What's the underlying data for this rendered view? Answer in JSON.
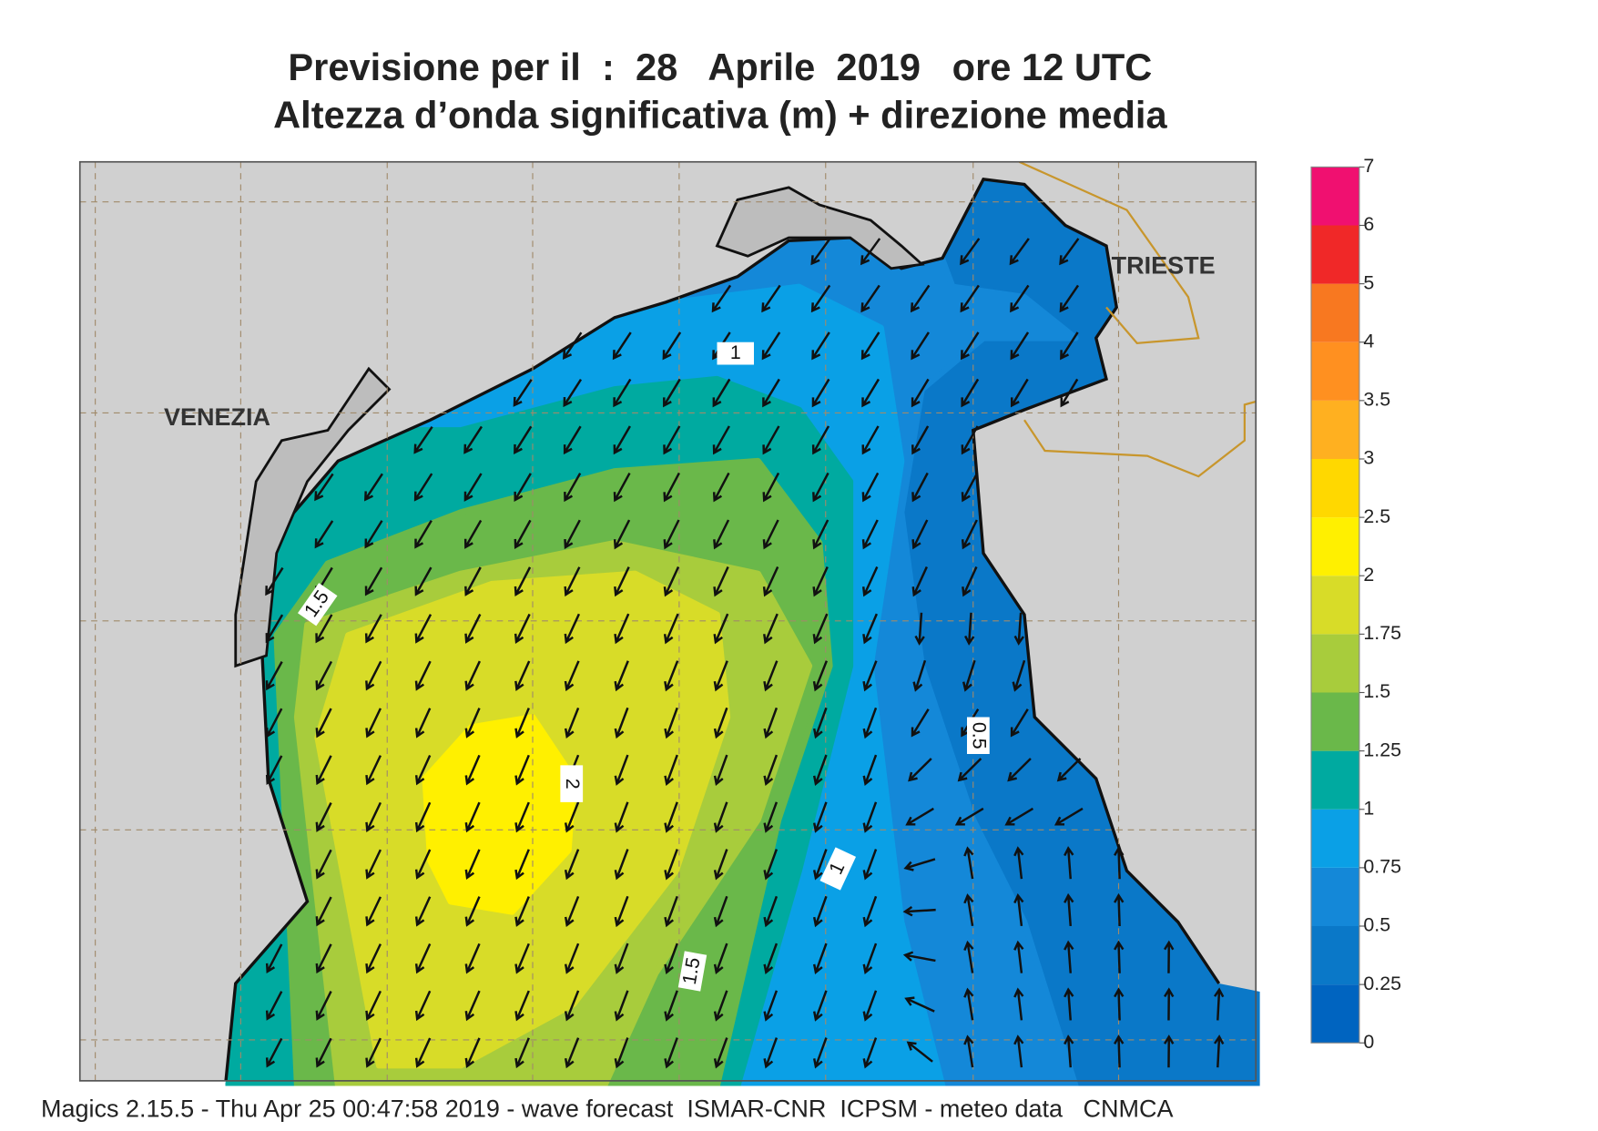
{
  "header": {
    "title_line1": "Previsione per il  :  28   Aprile  2019   ore 12 UTC",
    "title_line2": "Altezza d’onda significativa (m) + direzione media"
  },
  "map": {
    "places": [
      "VENEZIA",
      "TRIESTE"
    ],
    "contour_labels": [
      1,
      1.5,
      0.5,
      1,
      1.5,
      2
    ]
  },
  "colorbar": {
    "ticks": [
      0,
      0.25,
      0.5,
      0.75,
      1,
      1.25,
      1.5,
      1.75,
      2,
      2.5,
      3,
      3.5,
      4,
      5,
      6,
      7
    ],
    "colors": [
      "#0064c0",
      "#0a78c8",
      "#1488d8",
      "#0aa0e6",
      "#00aaa0",
      "#6ab84a",
      "#a8cc3c",
      "#d8dc28",
      "#fff000",
      "#ffd800",
      "#ffb020",
      "#ff9020",
      "#f87820",
      "#f02828",
      "#f01070"
    ]
  },
  "footer": "Magics 2.15.5 - Thu Apr 25 00:47:58 2019 - wave forecast  ISMAR-CNR  ICPSM - meteo data   CNMCA"
}
